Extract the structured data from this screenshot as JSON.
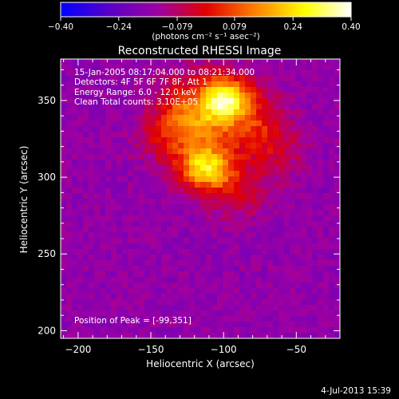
{
  "chart_data": {
    "type": "heatmap",
    "title": "Reconstructed RHESSI Image",
    "xlabel": "Heliocentric X (arcsec)",
    "ylabel": "Heliocentric Y (arcsec)",
    "xlim": [
      -212,
      -20
    ],
    "ylim": [
      195,
      377
    ],
    "x_ticks": [
      -200,
      -150,
      -100,
      -50
    ],
    "y_ticks": [
      200,
      250,
      300,
      350
    ],
    "colorbar": {
      "min": -0.4,
      "max": 0.4,
      "ticks": [
        "-0.40",
        "-0.24",
        "-0.079",
        "0.079",
        "0.24",
        "0.40"
      ],
      "tick_values": [
        -0.4,
        -0.24,
        -0.079,
        0.079,
        0.24,
        0.4
      ],
      "unit_label": "(photons cm⁻² s⁻¹ asec⁻²)",
      "colors": [
        "#0000ff",
        "#5a00c8",
        "#a000a0",
        "#e00000",
        "#ff8000",
        "#ffff00",
        "#ffffff"
      ]
    },
    "annotations": [
      "15-Jan-2005 08:17:04.000 to 08:21:34.000",
      "Detectors: 4F 5F 6F 7F 8F, Att 1",
      "Energy Range: 6.0 - 12.0 keV",
      "Clean    Total counts: 3.10E+05"
    ],
    "peak_label": "Position of Peak = [-99,351]",
    "peak": [
      -99,
      351
    ],
    "sources": [
      {
        "x": -99,
        "y": 351,
        "sx": 11,
        "sy": 10,
        "amp": 0.4
      },
      {
        "x": -112,
        "y": 305,
        "sx": 12,
        "sy": 9,
        "amp": 0.3
      },
      {
        "x": -115,
        "y": 330,
        "sx": 18,
        "sy": 22,
        "amp": 0.22
      },
      {
        "x": -78,
        "y": 335,
        "sx": 14,
        "sy": 18,
        "amp": 0.16
      },
      {
        "x": -130,
        "y": 340,
        "sx": 14,
        "sy": 16,
        "amp": 0.14
      },
      {
        "x": -90,
        "y": 290,
        "sx": 14,
        "sy": 12,
        "amp": 0.12
      },
      {
        "x": -60,
        "y": 318,
        "sx": 12,
        "sy": 12,
        "amp": 0.08
      },
      {
        "x": -150,
        "y": 325,
        "sx": 10,
        "sy": 10,
        "amp": 0.06
      }
    ],
    "background_level": -0.16
  },
  "footer": {
    "date": "4-Jul-2013 15:39"
  }
}
